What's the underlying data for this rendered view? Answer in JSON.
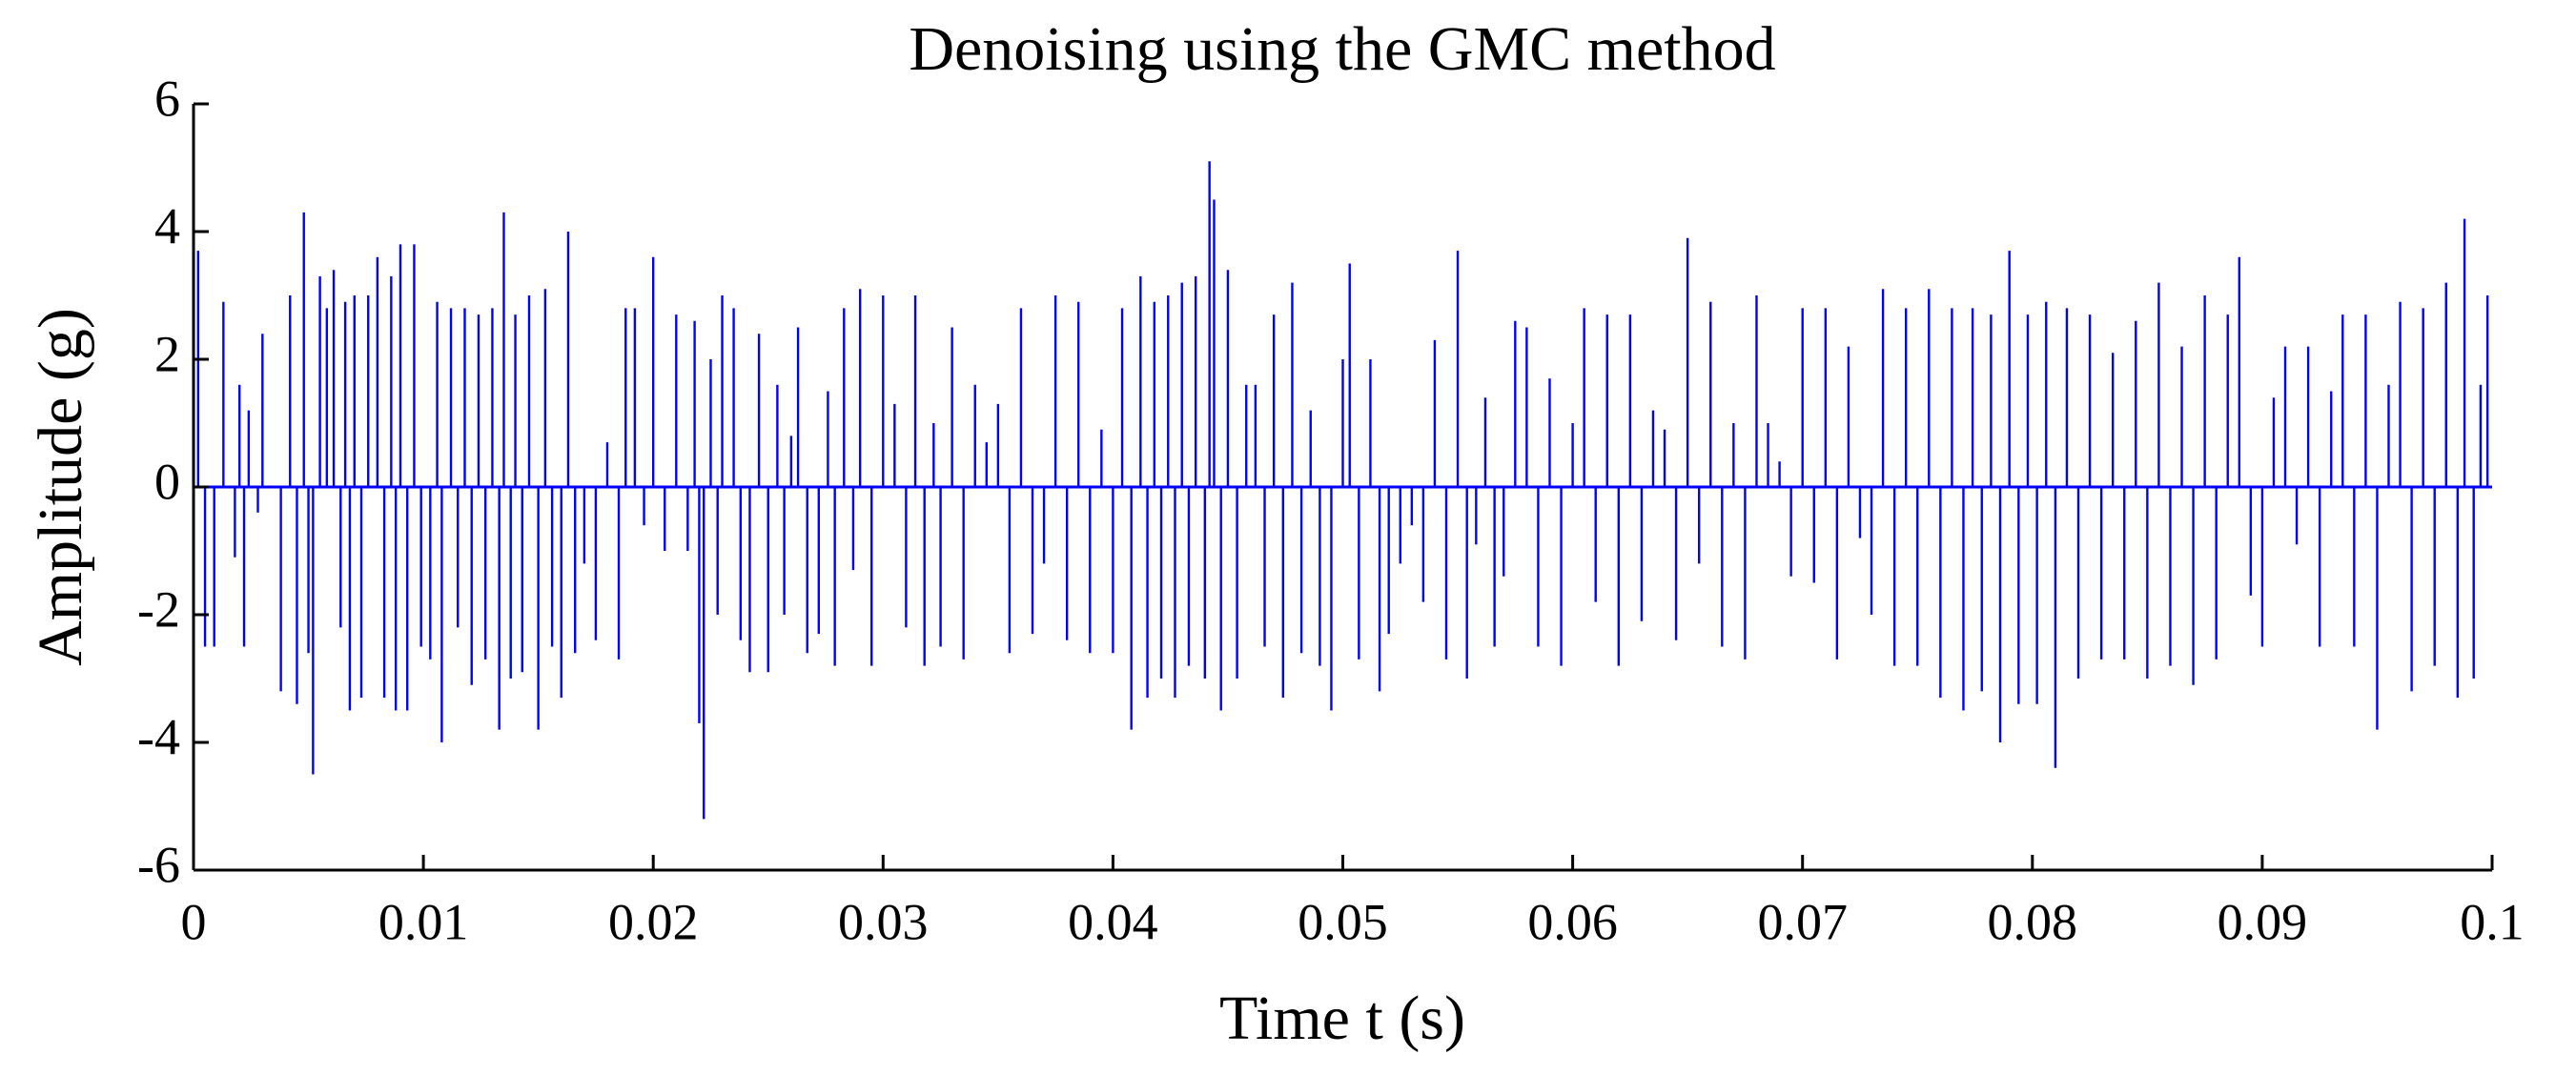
{
  "chart_data": {
    "type": "stem",
    "title": "Denoising using the GMC method",
    "xlabel": "Time t (s)",
    "ylabel": "Amplitude (g)",
    "color": "#0000ff",
    "xlim": [
      0,
      0.1
    ],
    "xticks": [
      0,
      0.01,
      0.02,
      0.03,
      0.04,
      0.05,
      0.06,
      0.07,
      0.08,
      0.09,
      0.1
    ],
    "ylim": [
      -6,
      6
    ],
    "yticks": [
      -6,
      -4,
      -2,
      0,
      2,
      4,
      6
    ],
    "x": [
      0.0002,
      0.0005,
      0.0009,
      0.0013,
      0.0018,
      0.002,
      0.0022,
      0.0024,
      0.0028,
      0.003,
      0.0038,
      0.0042,
      0.0045,
      0.0048,
      0.005,
      0.0052,
      0.0055,
      0.0058,
      0.0061,
      0.0064,
      0.0066,
      0.0068,
      0.007,
      0.0073,
      0.0076,
      0.008,
      0.0083,
      0.0086,
      0.0088,
      0.009,
      0.0093,
      0.0096,
      0.0099,
      0.0103,
      0.0106,
      0.0108,
      0.0112,
      0.0115,
      0.0118,
      0.0121,
      0.0124,
      0.0127,
      0.013,
      0.0133,
      0.0135,
      0.0138,
      0.014,
      0.0143,
      0.0146,
      0.015,
      0.0153,
      0.0156,
      0.016,
      0.0163,
      0.0166,
      0.017,
      0.0175,
      0.018,
      0.0185,
      0.0188,
      0.0192,
      0.0196,
      0.02,
      0.0205,
      0.021,
      0.0215,
      0.0218,
      0.022,
      0.0222,
      0.0225,
      0.0228,
      0.023,
      0.0235,
      0.0238,
      0.0242,
      0.0246,
      0.025,
      0.0254,
      0.0257,
      0.026,
      0.0263,
      0.0267,
      0.0272,
      0.0276,
      0.0279,
      0.0283,
      0.0287,
      0.029,
      0.0295,
      0.03,
      0.0305,
      0.031,
      0.0314,
      0.0318,
      0.0322,
      0.0325,
      0.033,
      0.0335,
      0.034,
      0.0345,
      0.035,
      0.0355,
      0.036,
      0.0365,
      0.037,
      0.0375,
      0.038,
      0.0385,
      0.039,
      0.0395,
      0.04,
      0.0404,
      0.0408,
      0.0412,
      0.0415,
      0.0418,
      0.0421,
      0.0424,
      0.0427,
      0.043,
      0.0433,
      0.0436,
      0.044,
      0.0442,
      0.0444,
      0.0447,
      0.045,
      0.0454,
      0.0458,
      0.0462,
      0.0466,
      0.047,
      0.0474,
      0.0478,
      0.0482,
      0.0486,
      0.049,
      0.0495,
      0.05,
      0.0503,
      0.0507,
      0.0512,
      0.0516,
      0.052,
      0.0525,
      0.053,
      0.0535,
      0.054,
      0.0545,
      0.055,
      0.0554,
      0.0558,
      0.0562,
      0.0566,
      0.057,
      0.0575,
      0.058,
      0.0585,
      0.059,
      0.0595,
      0.06,
      0.0605,
      0.061,
      0.0615,
      0.062,
      0.0625,
      0.063,
      0.0635,
      0.064,
      0.0645,
      0.065,
      0.0655,
      0.066,
      0.0665,
      0.067,
      0.0675,
      0.068,
      0.0685,
      0.069,
      0.0695,
      0.07,
      0.0705,
      0.071,
      0.0715,
      0.072,
      0.0725,
      0.073,
      0.0735,
      0.074,
      0.0745,
      0.075,
      0.0755,
      0.076,
      0.0765,
      0.077,
      0.0774,
      0.0778,
      0.0782,
      0.0786,
      0.079,
      0.0794,
      0.0798,
      0.0802,
      0.0806,
      0.081,
      0.0815,
      0.082,
      0.0825,
      0.083,
      0.0835,
      0.084,
      0.0845,
      0.085,
      0.0855,
      0.086,
      0.0865,
      0.087,
      0.0875,
      0.088,
      0.0885,
      0.089,
      0.0895,
      0.09,
      0.0905,
      0.091,
      0.0915,
      0.092,
      0.0925,
      0.093,
      0.0935,
      0.094,
      0.0945,
      0.095,
      0.0955,
      0.096,
      0.0965,
      0.097,
      0.0975,
      0.098,
      0.0985,
      0.0988,
      0.0992,
      0.0995,
      0.0998
    ],
    "values": [
      3.7,
      -2.5,
      -2.5,
      2.9,
      -1.1,
      1.6,
      -2.5,
      1.2,
      -0.4,
      2.4,
      -3.2,
      3.0,
      -3.4,
      4.3,
      -2.6,
      -4.5,
      3.3,
      2.8,
      3.4,
      -2.2,
      2.9,
      -3.5,
      3.0,
      -3.3,
      3.0,
      3.6,
      -3.3,
      3.3,
      -3.5,
      3.8,
      -3.5,
      3.8,
      -2.5,
      -2.7,
      2.9,
      -4.0,
      2.8,
      -2.2,
      2.8,
      -3.1,
      2.7,
      -2.7,
      2.8,
      -3.8,
      4.3,
      -3.0,
      2.7,
      -2.9,
      3.0,
      -3.8,
      3.1,
      -2.5,
      -3.3,
      4.0,
      -2.6,
      -1.2,
      -2.4,
      0.7,
      -2.7,
      2.8,
      2.8,
      -0.6,
      3.6,
      -1.0,
      2.7,
      -1.0,
      2.6,
      -3.7,
      -5.2,
      2.0,
      -2.0,
      3.0,
      2.8,
      -2.4,
      -2.9,
      2.4,
      -2.9,
      1.6,
      -2.0,
      0.8,
      2.5,
      -2.6,
      -2.3,
      1.5,
      -2.8,
      2.8,
      -1.3,
      3.1,
      -2.8,
      3.0,
      1.3,
      -2.2,
      3.0,
      -2.8,
      1.0,
      -2.5,
      2.5,
      -2.7,
      1.6,
      0.7,
      1.3,
      -2.6,
      2.8,
      -2.3,
      -1.2,
      3.0,
      -2.4,
      2.9,
      -2.6,
      0.9,
      -2.6,
      2.8,
      -3.8,
      3.3,
      -3.3,
      2.9,
      -3.0,
      3.0,
      -3.3,
      3.2,
      -2.8,
      3.3,
      -3.0,
      5.1,
      4.5,
      -3.5,
      3.4,
      -3.0,
      1.6,
      1.6,
      -2.5,
      2.7,
      -3.3,
      3.2,
      -2.6,
      1.2,
      -2.8,
      -3.5,
      2.0,
      3.5,
      -2.7,
      2.0,
      -3.2,
      -2.3,
      -1.2,
      -0.6,
      -1.8,
      2.3,
      -2.7,
      3.7,
      -3.0,
      -0.9,
      1.4,
      -2.5,
      -1.4,
      2.6,
      2.5,
      -2.5,
      1.7,
      -2.8,
      1.0,
      2.8,
      -1.8,
      2.7,
      -2.8,
      2.7,
      -2.1,
      1.2,
      0.9,
      -2.4,
      3.9,
      -1.2,
      2.9,
      -2.5,
      1.0,
      -2.7,
      3.0,
      1.0,
      0.4,
      -1.4,
      2.8,
      -1.5,
      2.8,
      -2.7,
      2.2,
      -0.8,
      -2.0,
      3.1,
      -2.8,
      2.8,
      -2.8,
      3.1,
      -3.3,
      2.8,
      -3.5,
      2.8,
      -3.2,
      2.7,
      -4.0,
      3.7,
      -3.4,
      2.7,
      -3.4,
      2.9,
      -4.4,
      2.8,
      -3.0,
      2.7,
      -2.7,
      2.1,
      -2.7,
      2.6,
      -3.0,
      3.2,
      -2.8,
      2.2,
      -3.1,
      3.0,
      -2.7,
      2.7,
      3.6,
      -1.7,
      -2.5,
      1.4,
      2.2,
      -0.9,
      2.2,
      -2.5,
      1.5,
      2.7,
      -2.5,
      2.7,
      -3.8,
      1.6,
      2.9,
      -3.2,
      2.8,
      -2.8,
      3.2,
      -3.3,
      4.2,
      -3.0,
      1.6,
      3.0
    ]
  }
}
